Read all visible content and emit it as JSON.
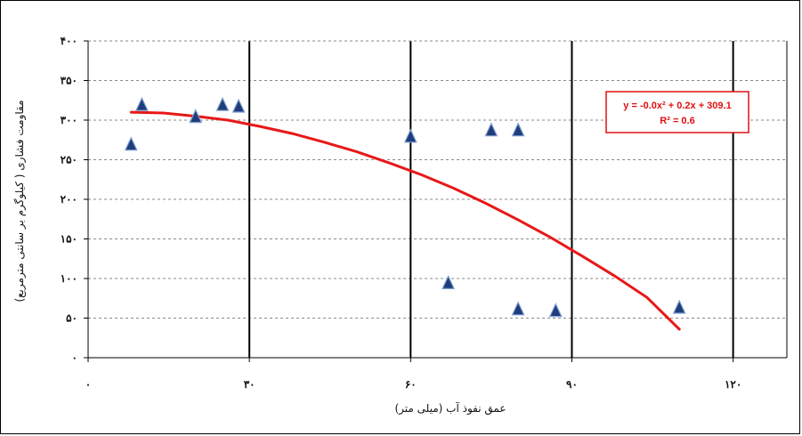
{
  "chart_data": {
    "type": "scatter",
    "xlabel": "عمق نفوذ آب (میلی متر)",
    "ylabel": "مقاومت فشاری ( کیلوگرم بر سانتی مترمربع)",
    "xlim": [
      0,
      130
    ],
    "ylim": [
      0,
      400
    ],
    "x_ticks": [
      0,
      30,
      60,
      90,
      120
    ],
    "x_tick_labels": [
      "۰",
      "۳۰",
      "۶۰",
      "۹۰",
      "۱۲۰"
    ],
    "y_ticks": [
      0,
      50,
      100,
      150,
      200,
      250,
      300,
      350,
      400
    ],
    "y_tick_labels": [
      "۰",
      "۵۰",
      "۱۰۰",
      "۱۵۰",
      "۲۰۰",
      "۲۵۰",
      "۳۰۰",
      "۳۵۰",
      "۴۰۰"
    ],
    "grid": {
      "x": "solid-black",
      "y": "dashed-gray"
    },
    "series": [
      {
        "type": "scatter",
        "marker": "triangle",
        "color": "#1f3d7a",
        "points": [
          [
            8,
            270
          ],
          [
            10,
            320
          ],
          [
            20,
            305
          ],
          [
            25,
            320
          ],
          [
            28,
            318
          ],
          [
            60,
            280
          ],
          [
            67,
            95
          ],
          [
            75,
            288
          ],
          [
            80,
            288
          ],
          [
            80,
            62
          ],
          [
            87,
            60
          ],
          [
            110,
            64
          ]
        ]
      },
      {
        "type": "line",
        "kind": "trendline",
        "color": "#e81818",
        "x": [
          8,
          14,
          20,
          26,
          32,
          38,
          44,
          50,
          56,
          62,
          68,
          74,
          80,
          86,
          92,
          98,
          104,
          110
        ],
        "y": [
          310,
          309,
          305,
          300,
          292,
          283,
          272,
          260,
          246,
          231,
          214,
          195,
          174,
          152,
          128,
          103,
          76,
          36
        ]
      }
    ],
    "annotation": {
      "line1": "y = -0.0x² + 0.2x + 309.1",
      "line2": "R² = 0.6",
      "color": "#e81818",
      "placement": "top-right"
    }
  }
}
